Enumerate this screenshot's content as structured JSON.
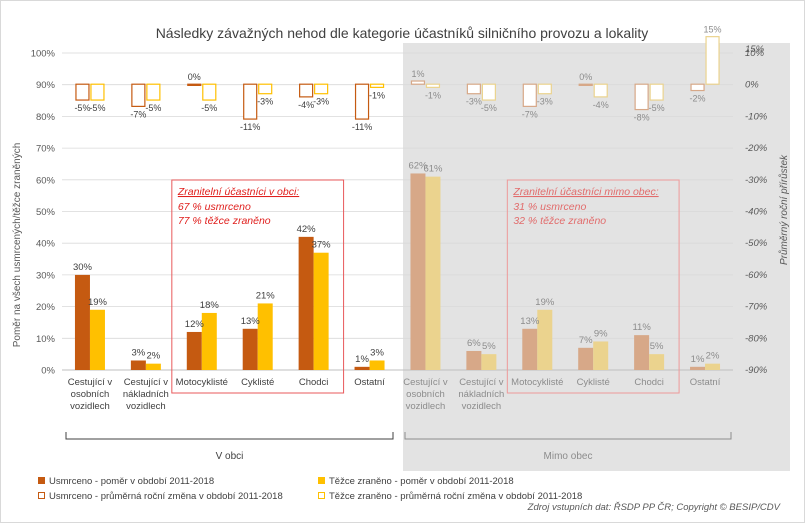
{
  "chart_data": {
    "type": "bar",
    "title": "Následky závažných nehod dle kategorie účastníků silničního provozu a lokality",
    "ylabel_left": "Poměr na všech usmrcených/těžce zraněných",
    "ylabel_right": "Průměrný roční přírůstek",
    "ylim_left": [
      0,
      100
    ],
    "ylim_right": [
      -90,
      15
    ],
    "yticks_left": [
      "0%",
      "10%",
      "20%",
      "30%",
      "40%",
      "50%",
      "60%",
      "70%",
      "80%",
      "90%",
      "100%"
    ],
    "yticks_right": [
      "-90%",
      "-80%",
      "-70%",
      "-60%",
      "-50%",
      "-40%",
      "-30%",
      "-20%",
      "-10%",
      "0%",
      "10%"
    ],
    "yticks_right_top": "15%",
    "groups": [
      {
        "name": "V obci",
        "categories": [
          {
            "label": "Cestující v osobních vozidlech",
            "lines": [
              "Cestující v",
              "osobních",
              "vozidlech"
            ]
          },
          {
            "label": "Cestující v nákladních vozidlech",
            "lines": [
              "Cestující v",
              "nákladních",
              "vozidlech"
            ]
          },
          {
            "label": "Motocyklisté",
            "lines": [
              "Motocyklisté"
            ]
          },
          {
            "label": "Cyklisté",
            "lines": [
              "Cyklisté"
            ]
          },
          {
            "label": "Chodci",
            "lines": [
              "Chodci"
            ]
          },
          {
            "label": "Ostatní",
            "lines": [
              "Ostatní"
            ]
          }
        ],
        "killed_share": [
          30,
          3,
          12,
          13,
          42,
          1
        ],
        "injured_share": [
          19,
          2,
          18,
          21,
          37,
          3
        ],
        "killed_change": [
          -5,
          -7,
          0,
          -11,
          -4,
          -11
        ],
        "injured_change": [
          -5,
          -5,
          -5,
          -3,
          -3,
          -1
        ]
      },
      {
        "name": "Mimo obec",
        "categories": [
          {
            "label": "Cestující v osobních vozidlech",
            "lines": [
              "Cestující v",
              "osobních",
              "vozidlech"
            ]
          },
          {
            "label": "Cestující v nákladních vozidlech",
            "lines": [
              "Cestující v",
              "nákladních",
              "vozidlech"
            ]
          },
          {
            "label": "Motocyklisté",
            "lines": [
              "Motocyklisté"
            ]
          },
          {
            "label": "Cyklisté",
            "lines": [
              "Cyklisté"
            ]
          },
          {
            "label": "Chodci",
            "lines": [
              "Chodci"
            ]
          },
          {
            "label": "Ostatní",
            "lines": [
              "Ostatní"
            ]
          }
        ],
        "killed_share": [
          62,
          6,
          13,
          7,
          11,
          1
        ],
        "injured_share": [
          61,
          5,
          19,
          9,
          5,
          2
        ],
        "killed_change": [
          1,
          -3,
          -7,
          0,
          -8,
          -2
        ],
        "injured_change": [
          -1,
          -5,
          -3,
          -4,
          -5,
          15
        ]
      }
    ],
    "annotations": [
      {
        "title": "Zranitelní účastníci v obci:",
        "lines": [
          "67 % usmrceno",
          "77 % těžce zraněno"
        ]
      },
      {
        "title": "Zranitelní účastníci mimo obec:",
        "lines": [
          "31 % usmrceno",
          "32 % těžce zraněno"
        ]
      }
    ],
    "legend": [
      "Usmrceno - poměr v období 2011-2018",
      "Těžce zraněno - poměr v období 2011-2018",
      "Usmrceno - průměrná roční změna v období 2011-2018",
      "Těžce zraněno - průměrná roční změna v období 2011-2018"
    ],
    "source": "Zdroj vstupních dat: ŘSDP PP ČR; Copyright © BESIP/CDV"
  },
  "colors": {
    "killed": "#C55A11",
    "injured": "#FFC000",
    "killed_faded": "#D7A888",
    "injured_faded": "#EBD38E",
    "red_box": "#E8595B",
    "red_text": "#E0201E",
    "red_text_faded": "#E26C6C",
    "shade": "#E3E3E3",
    "axis_text": "#595959",
    "grid": "#D9D9D9"
  }
}
